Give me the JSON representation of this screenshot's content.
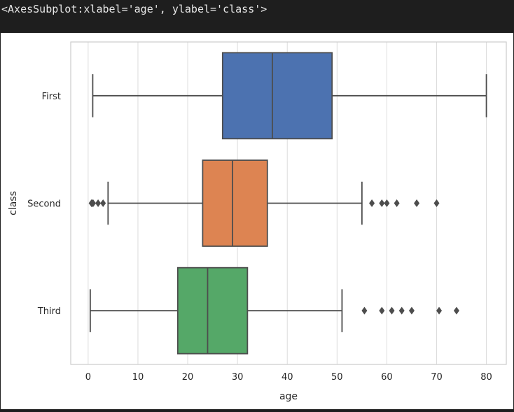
{
  "output": {
    "text": "<AxesSubplot:xlabel='age', ylabel='class'>"
  },
  "chart_data": {
    "type": "box",
    "orientation": "horizontal",
    "xlabel": "age",
    "ylabel": "class",
    "xlim": [
      -3.5,
      84
    ],
    "xticks": [
      0,
      10,
      20,
      30,
      40,
      50,
      60,
      70,
      80
    ],
    "grid": "vertical",
    "categories": [
      "First",
      "Second",
      "Third"
    ],
    "boxes": [
      {
        "category": "First",
        "whisker_low": 0.92,
        "q1": 27,
        "median": 37,
        "q3": 49,
        "whisker_high": 80,
        "color": "#4c72b0",
        "outliers": []
      },
      {
        "category": "Second",
        "whisker_low": 4,
        "q1": 23,
        "median": 29,
        "q3": 36,
        "whisker_high": 55,
        "color": "#dd8452",
        "outliers": [
          0.67,
          0.83,
          1,
          2,
          3,
          57,
          59,
          60,
          62,
          66,
          70
        ]
      },
      {
        "category": "Third",
        "whisker_low": 0.42,
        "q1": 18,
        "median": 24,
        "q3": 32,
        "whisker_high": 51,
        "color": "#55a868",
        "outliers": [
          55.5,
          59,
          61,
          63,
          65,
          70.5,
          74
        ]
      }
    ]
  }
}
